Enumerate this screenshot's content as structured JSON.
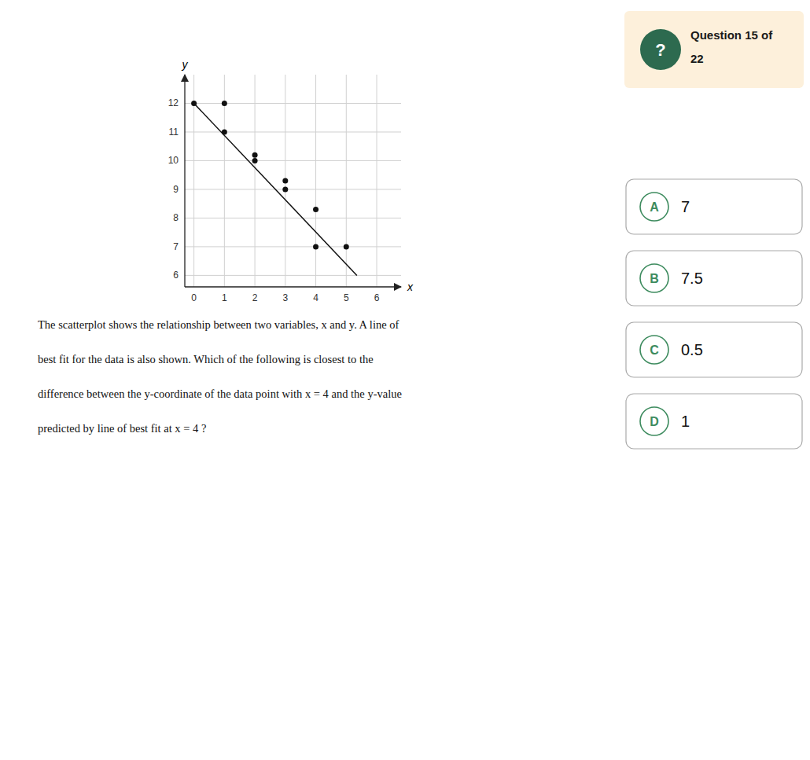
{
  "chart_data": {
    "type": "scatter",
    "x_label": "x",
    "y_label": "y",
    "series": [
      {
        "type": "scatter",
        "color": "#111111",
        "marker": "circle",
        "x": [
          0,
          1,
          1,
          2,
          2,
          3,
          3,
          4,
          4,
          5
        ],
        "values": [
          12,
          11,
          12,
          10.2,
          10,
          9.3,
          9,
          8.3,
          7,
          7
        ]
      },
      {
        "type": "line",
        "color": "#111111",
        "line_style": "solid",
        "x": [
          0,
          5.35
        ],
        "values": [
          12.0,
          6.0
        ]
      }
    ],
    "xlim": [
      -0.3,
      6.8
    ],
    "ylim": [
      5.6,
      13.0
    ],
    "xticks": [
      0,
      1,
      2,
      3,
      4,
      5,
      6
    ],
    "yticks": [
      6,
      7,
      8,
      9,
      10,
      11,
      12
    ],
    "grid": true,
    "question": {
      "header": {
        "icon": "?",
        "lines": [
          "Question 15 of",
          "22"
        ]
      },
      "body": [
        "The scatterplot shows the relationship between two variables, x and y. A line of",
        "best fit for the data is also shown. Which of the following is closest to the",
        "difference between the y-coordinate of the data point with x = 4 and the y-value",
        "predicted by line of best fit at x = 4 ?"
      ],
      "choices": [
        {
          "label": "A",
          "text": "7"
        },
        {
          "label": "B",
          "text": "7.5"
        },
        {
          "label": "C",
          "text": "0.5"
        },
        {
          "label": "D",
          "text": "1"
        }
      ]
    }
  }
}
